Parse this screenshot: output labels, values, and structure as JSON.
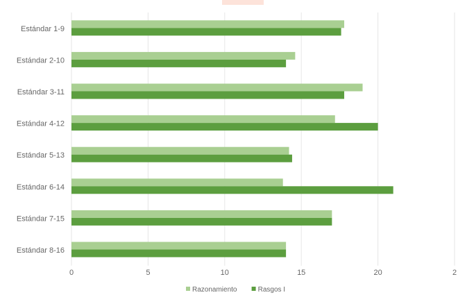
{
  "chart_data": {
    "type": "bar",
    "orientation": "horizontal",
    "title": "",
    "xlabel": "",
    "ylabel": "",
    "categories": [
      "Estándar 1-9",
      "Estándar 2-10",
      "Estándar 3-11",
      "Estándar 4-12",
      "Estándar 5-13",
      "Estándar 6-14",
      "Estándar 7-15",
      "Estándar 8-16"
    ],
    "series": [
      {
        "name": "Razonamiento",
        "color": "#a9cf92",
        "values": [
          17.8,
          14.6,
          19.0,
          17.2,
          14.2,
          13.8,
          17.0,
          14.0
        ]
      },
      {
        "name": "Rasgos I",
        "color": "#5c9e3f",
        "values": [
          17.6,
          14.0,
          17.8,
          20.0,
          14.4,
          21.0,
          17.0,
          14.0
        ]
      }
    ],
    "xlim": [
      0,
      25
    ],
    "xticks": [
      "0",
      "5",
      "10",
      "15",
      "20",
      "2"
    ],
    "grid": true,
    "legend_position": "bottom"
  }
}
